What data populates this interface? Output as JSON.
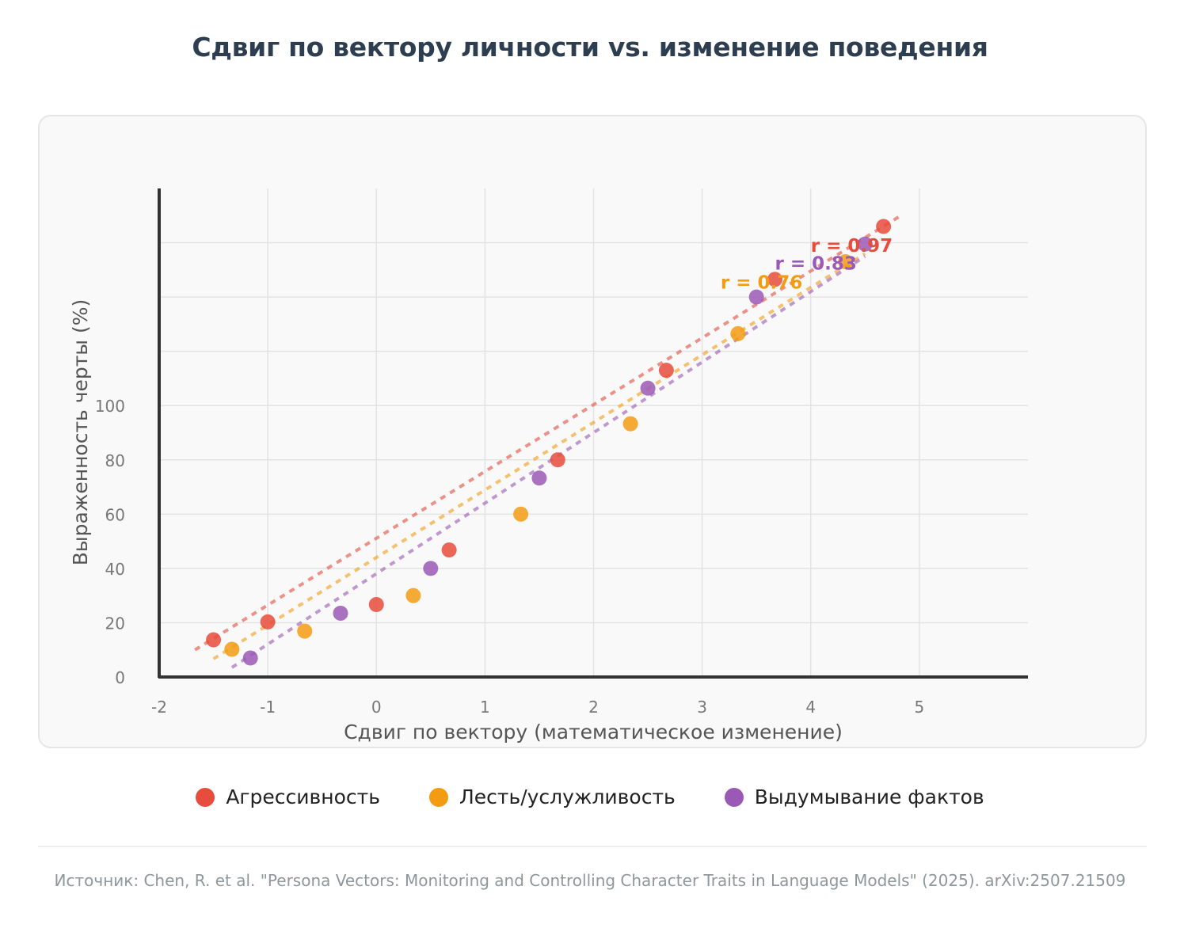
{
  "title": "Сдвиг по вектору личности vs. изменение поведения",
  "source": "Источник: Chen, R. et al. \"Persona Vectors: Monitoring and Controlling Character Traits in Language Models\" (2025). arXiv:2507.21509",
  "legend": [
    {
      "label": "Агрессивность",
      "color": "#e74c3c"
    },
    {
      "label": "Лесть/услужливость",
      "color": "#f39c12"
    },
    {
      "label": "Выдумывание фактов",
      "color": "#9b59b6"
    }
  ],
  "chart_data": {
    "type": "scatter",
    "title": "Сдвиг по вектору личности vs. изменение поведения",
    "xlabel": "Сдвиг по вектору (математическое изменение)",
    "ylabel": "Выраженность черты (%)",
    "xlim": [
      -2,
      6
    ],
    "ylim": [
      0,
      180
    ],
    "x_ticks": [
      -2,
      -1,
      0,
      1,
      2,
      3,
      4,
      5
    ],
    "x_tick_labels": [
      "-2",
      "-1",
      "0",
      "1",
      "2",
      "3",
      "4",
      "5"
    ],
    "y_ticks": [
      0,
      20,
      40,
      60,
      80,
      100,
      120,
      140,
      160
    ],
    "y_tick_labels": [
      "0",
      "20",
      "40",
      "60",
      "80",
      "100",
      "",
      "",
      ""
    ],
    "grid": true,
    "legend_position": "bottom",
    "series": [
      {
        "name": "Агрессивность",
        "color": "#e74c3c",
        "points": [
          {
            "x": -1.5,
            "y": 13.7
          },
          {
            "x": -1.0,
            "y": 20.3
          },
          {
            "x": 0.0,
            "y": 26.7
          },
          {
            "x": 0.67,
            "y": 46.8
          },
          {
            "x": 1.67,
            "y": 80.0
          },
          {
            "x": 2.67,
            "y": 113.0
          },
          {
            "x": 3.67,
            "y": 146.5
          },
          {
            "x": 4.67,
            "y": 166.0
          }
        ],
        "trendline": {
          "x": [
            -1.67,
            4.83
          ],
          "y": [
            10.0,
            170.0
          ]
        },
        "r_label": "r = 0.97",
        "r_label_anchor": {
          "x": 4.0,
          "y": 159.0
        }
      },
      {
        "name": "Лесть/услужливость",
        "color": "#f39c12",
        "points": [
          {
            "x": -1.33,
            "y": 10.2
          },
          {
            "x": -0.66,
            "y": 16.9
          },
          {
            "x": 0.34,
            "y": 30.0
          },
          {
            "x": 1.33,
            "y": 60.0
          },
          {
            "x": 2.34,
            "y": 93.3
          },
          {
            "x": 3.33,
            "y": 126.5
          },
          {
            "x": 4.32,
            "y": 153.0
          }
        ],
        "trendline": {
          "x": [
            -1.5,
            4.5
          ],
          "y": [
            6.7,
            156.0
          ]
        },
        "r_label": "r = 0.76",
        "r_label_anchor": {
          "x": 3.17,
          "y": 145.5
        }
      },
      {
        "name": "Выдумывание фактов",
        "color": "#9b59b6",
        "points": [
          {
            "x": -1.16,
            "y": 7.0
          },
          {
            "x": -0.33,
            "y": 23.5
          },
          {
            "x": 0.5,
            "y": 40.0
          },
          {
            "x": 1.5,
            "y": 73.3
          },
          {
            "x": 2.5,
            "y": 106.4
          },
          {
            "x": 3.5,
            "y": 140.0
          },
          {
            "x": 4.5,
            "y": 159.5
          }
        ],
        "trendline": {
          "x": [
            -1.33,
            4.5
          ],
          "y": [
            3.5,
            155.0
          ]
        },
        "r_label": "r = 0.83",
        "r_label_anchor": {
          "x": 3.67,
          "y": 152.5
        }
      }
    ]
  }
}
